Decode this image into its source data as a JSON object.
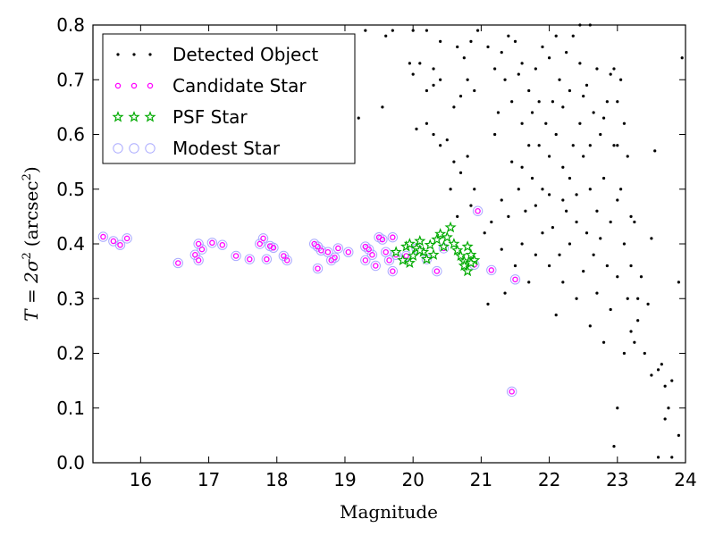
{
  "chart_data": {
    "type": "scatter",
    "xlabel": "Magnitude",
    "ylabel_main": "T = 2σ",
    "ylabel_sup": "2",
    "ylabel_paren_open": "(arcsec",
    "ylabel_paren_sup": "2",
    "ylabel_paren_close": ")",
    "xlim": [
      15.3,
      24.0
    ],
    "ylim": [
      0.0,
      0.8
    ],
    "xticks": [
      "16",
      "17",
      "18",
      "19",
      "20",
      "21",
      "22",
      "23",
      "24"
    ],
    "yticks": [
      "0.0",
      "0.1",
      "0.2",
      "0.3",
      "0.4",
      "0.5",
      "0.6",
      "0.7",
      "0.8"
    ],
    "legend_position": "top-left",
    "series": [
      {
        "name": "Detected Object",
        "marker": "dot",
        "color": "#000000",
        "points": [
          [
            19.3,
            0.79
          ],
          [
            19.6,
            0.78
          ],
          [
            19.7,
            0.79
          ],
          [
            19.2,
            0.63
          ],
          [
            19.55,
            0.65
          ],
          [
            20.0,
            0.79
          ],
          [
            20.2,
            0.79
          ],
          [
            20.4,
            0.77
          ],
          [
            19.95,
            0.73
          ],
          [
            20.0,
            0.71
          ],
          [
            20.1,
            0.73
          ],
          [
            20.3,
            0.72
          ],
          [
            20.2,
            0.68
          ],
          [
            20.3,
            0.69
          ],
          [
            20.4,
            0.7
          ],
          [
            20.05,
            0.61
          ],
          [
            20.2,
            0.62
          ],
          [
            20.3,
            0.6
          ],
          [
            20.4,
            0.58
          ],
          [
            20.5,
            0.59
          ],
          [
            20.6,
            0.65
          ],
          [
            20.7,
            0.67
          ],
          [
            20.8,
            0.7
          ],
          [
            20.9,
            0.68
          ],
          [
            20.65,
            0.76
          ],
          [
            20.75,
            0.74
          ],
          [
            20.85,
            0.77
          ],
          [
            20.95,
            0.79
          ],
          [
            20.6,
            0.55
          ],
          [
            20.7,
            0.53
          ],
          [
            20.8,
            0.56
          ],
          [
            20.9,
            0.5
          ],
          [
            20.55,
            0.5
          ],
          [
            20.65,
            0.45
          ],
          [
            20.85,
            0.47
          ],
          [
            21.05,
            0.42
          ],
          [
            21.15,
            0.44
          ],
          [
            21.1,
            0.29
          ],
          [
            21.3,
            0.39
          ],
          [
            21.35,
            0.31
          ],
          [
            21.2,
            0.6
          ],
          [
            21.25,
            0.64
          ],
          [
            21.35,
            0.7
          ],
          [
            21.3,
            0.75
          ],
          [
            21.4,
            0.78
          ],
          [
            21.5,
            0.77
          ],
          [
            21.6,
            0.73
          ],
          [
            21.7,
            0.68
          ],
          [
            21.8,
            0.72
          ],
          [
            21.9,
            0.76
          ],
          [
            21.45,
            0.55
          ],
          [
            21.55,
            0.5
          ],
          [
            21.65,
            0.46
          ],
          [
            21.75,
            0.52
          ],
          [
            21.85,
            0.58
          ],
          [
            21.95,
            0.62
          ],
          [
            22.05,
            0.66
          ],
          [
            22.15,
            0.7
          ],
          [
            22.25,
            0.75
          ],
          [
            22.35,
            0.78
          ],
          [
            22.45,
            0.73
          ],
          [
            22.55,
            0.69
          ],
          [
            22.65,
            0.64
          ],
          [
            22.75,
            0.6
          ],
          [
            22.85,
            0.66
          ],
          [
            22.95,
            0.72
          ],
          [
            23.05,
            0.7
          ],
          [
            21.5,
            0.36
          ],
          [
            21.6,
            0.4
          ],
          [
            21.7,
            0.33
          ],
          [
            21.8,
            0.38
          ],
          [
            21.9,
            0.42
          ],
          [
            22.0,
            0.36
          ],
          [
            22.1,
            0.27
          ],
          [
            22.2,
            0.33
          ],
          [
            22.3,
            0.4
          ],
          [
            22.4,
            0.3
          ],
          [
            22.5,
            0.35
          ],
          [
            22.6,
            0.25
          ],
          [
            22.7,
            0.31
          ],
          [
            22.8,
            0.22
          ],
          [
            22.9,
            0.28
          ],
          [
            23.0,
            0.34
          ],
          [
            23.1,
            0.2
          ],
          [
            23.2,
            0.24
          ],
          [
            23.3,
            0.3
          ],
          [
            22.0,
            0.56
          ],
          [
            22.1,
            0.6
          ],
          [
            22.2,
            0.48
          ],
          [
            22.3,
            0.52
          ],
          [
            22.4,
            0.44
          ],
          [
            22.5,
            0.56
          ],
          [
            22.6,
            0.5
          ],
          [
            22.7,
            0.46
          ],
          [
            22.8,
            0.52
          ],
          [
            22.9,
            0.44
          ],
          [
            23.0,
            0.48
          ],
          [
            23.1,
            0.4
          ],
          [
            23.2,
            0.36
          ],
          [
            23.3,
            0.26
          ],
          [
            23.4,
            0.2
          ],
          [
            23.5,
            0.16
          ],
          [
            23.6,
            0.17
          ],
          [
            23.7,
            0.14
          ],
          [
            23.8,
            0.15
          ],
          [
            23.55,
            0.57
          ],
          [
            23.5,
            0.41
          ],
          [
            23.65,
            0.18
          ],
          [
            23.7,
            0.08
          ],
          [
            23.75,
            0.1
          ],
          [
            23.9,
            0.05
          ],
          [
            23.6,
            0.01
          ],
          [
            23.8,
            0.01
          ],
          [
            22.95,
            0.03
          ],
          [
            23.0,
            0.1
          ],
          [
            22.9,
            0.71
          ],
          [
            23.0,
            0.66
          ],
          [
            23.05,
            0.5
          ],
          [
            23.15,
            0.56
          ],
          [
            23.2,
            0.45
          ],
          [
            21.1,
            0.76
          ],
          [
            21.2,
            0.72
          ],
          [
            21.6,
            0.62
          ],
          [
            21.7,
            0.58
          ],
          [
            21.9,
            0.5
          ],
          [
            22.05,
            0.43
          ],
          [
            22.15,
            0.38
          ],
          [
            22.25,
            0.46
          ],
          [
            22.35,
            0.58
          ],
          [
            22.45,
            0.62
          ],
          [
            22.55,
            0.42
          ],
          [
            22.65,
            0.38
          ],
          [
            22.75,
            0.41
          ],
          [
            22.85,
            0.36
          ],
          [
            22.95,
            0.58
          ],
          [
            21.45,
            0.66
          ],
          [
            21.55,
            0.71
          ],
          [
            21.75,
            0.64
          ],
          [
            21.85,
            0.66
          ],
          [
            22.0,
            0.74
          ],
          [
            22.1,
            0.78
          ],
          [
            22.2,
            0.65
          ],
          [
            22.3,
            0.68
          ],
          [
            22.5,
            0.67
          ],
          [
            22.7,
            0.72
          ],
          [
            21.3,
            0.48
          ],
          [
            21.4,
            0.45
          ],
          [
            21.6,
            0.54
          ],
          [
            21.8,
            0.47
          ],
          [
            22.0,
            0.49
          ],
          [
            22.2,
            0.54
          ],
          [
            22.4,
            0.49
          ],
          [
            22.6,
            0.58
          ],
          [
            22.8,
            0.63
          ],
          [
            23.0,
            0.58
          ],
          [
            23.1,
            0.62
          ],
          [
            23.25,
            0.44
          ],
          [
            23.35,
            0.34
          ],
          [
            23.45,
            0.29
          ],
          [
            23.9,
            0.33
          ],
          [
            23.95,
            0.74
          ],
          [
            22.6,
            0.8
          ],
          [
            22.45,
            0.8
          ],
          [
            23.15,
            0.3
          ],
          [
            23.25,
            0.22
          ]
        ]
      },
      {
        "name": "Candidate Star",
        "marker": "circle-small",
        "color": "#ff00ff",
        "points": [
          [
            15.45,
            0.413
          ],
          [
            15.6,
            0.405
          ],
          [
            15.7,
            0.398
          ],
          [
            15.8,
            0.41
          ],
          [
            16.55,
            0.365
          ],
          [
            16.8,
            0.38
          ],
          [
            16.85,
            0.4
          ],
          [
            16.85,
            0.37
          ],
          [
            16.9,
            0.39
          ],
          [
            17.05,
            0.402
          ],
          [
            17.2,
            0.398
          ],
          [
            17.4,
            0.378
          ],
          [
            17.6,
            0.372
          ],
          [
            17.75,
            0.4
          ],
          [
            17.8,
            0.41
          ],
          [
            17.85,
            0.372
          ],
          [
            17.9,
            0.396
          ],
          [
            17.95,
            0.393
          ],
          [
            18.1,
            0.378
          ],
          [
            18.15,
            0.37
          ],
          [
            18.55,
            0.4
          ],
          [
            18.6,
            0.395
          ],
          [
            18.65,
            0.388
          ],
          [
            18.6,
            0.355
          ],
          [
            18.75,
            0.385
          ],
          [
            18.8,
            0.37
          ],
          [
            18.85,
            0.375
          ],
          [
            18.9,
            0.392
          ],
          [
            19.05,
            0.385
          ],
          [
            19.3,
            0.395
          ],
          [
            19.35,
            0.39
          ],
          [
            19.3,
            0.37
          ],
          [
            19.4,
            0.38
          ],
          [
            19.45,
            0.36
          ],
          [
            19.5,
            0.412
          ],
          [
            19.55,
            0.408
          ],
          [
            19.6,
            0.385
          ],
          [
            19.65,
            0.37
          ],
          [
            19.7,
            0.412
          ],
          [
            19.7,
            0.35
          ],
          [
            19.75,
            0.38
          ],
          [
            19.9,
            0.378
          ],
          [
            20.05,
            0.392
          ],
          [
            20.2,
            0.372
          ],
          [
            20.35,
            0.35
          ],
          [
            20.45,
            0.392
          ],
          [
            20.9,
            0.362
          ],
          [
            20.95,
            0.46
          ],
          [
            21.15,
            0.352
          ],
          [
            21.45,
            0.13
          ],
          [
            21.5,
            0.335
          ]
        ]
      },
      {
        "name": "PSF Star",
        "marker": "star",
        "color": "#00aa00",
        "points": [
          [
            19.75,
            0.385
          ],
          [
            19.85,
            0.37
          ],
          [
            19.9,
            0.395
          ],
          [
            19.95,
            0.4
          ],
          [
            20.0,
            0.378
          ],
          [
            20.05,
            0.392
          ],
          [
            20.1,
            0.405
          ],
          [
            20.15,
            0.385
          ],
          [
            20.2,
            0.372
          ],
          [
            20.25,
            0.398
          ],
          [
            20.3,
            0.38
          ],
          [
            20.35,
            0.408
          ],
          [
            20.4,
            0.418
          ],
          [
            20.45,
            0.395
          ],
          [
            20.5,
            0.412
          ],
          [
            20.55,
            0.43
          ],
          [
            20.6,
            0.4
          ],
          [
            20.65,
            0.388
          ],
          [
            20.7,
            0.378
          ],
          [
            20.75,
            0.368
          ],
          [
            20.8,
            0.395
          ],
          [
            20.85,
            0.38
          ],
          [
            20.9,
            0.37
          ],
          [
            20.8,
            0.35
          ],
          [
            20.75,
            0.36
          ],
          [
            20.85,
            0.365
          ],
          [
            19.95,
            0.365
          ],
          [
            20.1,
            0.388
          ]
        ]
      },
      {
        "name": "Modest Star",
        "marker": "circle-large",
        "color": "#aaaaff",
        "points": [
          [
            15.45,
            0.413
          ],
          [
            15.6,
            0.405
          ],
          [
            15.7,
            0.398
          ],
          [
            15.8,
            0.41
          ],
          [
            16.55,
            0.365
          ],
          [
            16.8,
            0.38
          ],
          [
            16.85,
            0.4
          ],
          [
            16.85,
            0.37
          ],
          [
            16.9,
            0.39
          ],
          [
            17.05,
            0.402
          ],
          [
            17.2,
            0.398
          ],
          [
            17.4,
            0.378
          ],
          [
            17.6,
            0.372
          ],
          [
            17.75,
            0.4
          ],
          [
            17.8,
            0.41
          ],
          [
            17.85,
            0.372
          ],
          [
            17.9,
            0.396
          ],
          [
            17.95,
            0.393
          ],
          [
            18.1,
            0.378
          ],
          [
            18.15,
            0.37
          ],
          [
            18.55,
            0.4
          ],
          [
            18.6,
            0.395
          ],
          [
            18.65,
            0.388
          ],
          [
            18.6,
            0.355
          ],
          [
            18.75,
            0.385
          ],
          [
            18.8,
            0.37
          ],
          [
            18.85,
            0.375
          ],
          [
            18.9,
            0.392
          ],
          [
            19.05,
            0.385
          ],
          [
            19.3,
            0.395
          ],
          [
            19.35,
            0.39
          ],
          [
            19.3,
            0.37
          ],
          [
            19.4,
            0.38
          ],
          [
            19.45,
            0.36
          ],
          [
            19.5,
            0.412
          ],
          [
            19.55,
            0.408
          ],
          [
            19.6,
            0.385
          ],
          [
            19.65,
            0.37
          ],
          [
            19.7,
            0.412
          ],
          [
            19.7,
            0.35
          ],
          [
            19.75,
            0.38
          ],
          [
            19.9,
            0.378
          ],
          [
            20.05,
            0.392
          ],
          [
            20.2,
            0.372
          ],
          [
            20.35,
            0.35
          ],
          [
            20.45,
            0.392
          ],
          [
            20.9,
            0.362
          ],
          [
            20.95,
            0.46
          ],
          [
            21.15,
            0.352
          ],
          [
            21.45,
            0.13
          ],
          [
            21.5,
            0.335
          ]
        ]
      }
    ]
  }
}
